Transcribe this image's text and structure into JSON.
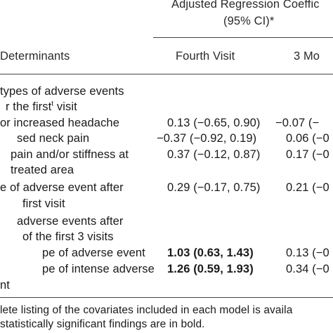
{
  "table": {
    "header": {
      "group_title_line1": "Adjusted Regression Coeffic",
      "group_title_line2": "(95% CI)*",
      "col_determinants": "Determinants",
      "col_fourth_visit": "Fourth Visit",
      "col_3mo": "3 Mo"
    },
    "rows": [
      {
        "label": "types of adverse events"
      },
      {
        "label": "r the first",
        "label_sup": "t",
        "label_tail": " visit"
      },
      {
        "label": "or increased headache",
        "fourth": "0.13 (−0.65, 0.90)",
        "three": "−0.07 (−"
      },
      {
        "label": "sed neck pain",
        "fourth": "−0.37 (−0.92, 0.19)",
        "three": "0.06 (−0"
      },
      {
        "label": "pain and/or stiffness at",
        "fourth": "0.37 (−0.12, 0.87)",
        "three": "0.17 (−0"
      },
      {
        "label": "treated area"
      },
      {
        "label": "e of adverse event after",
        "fourth": "0.29 (−0.17, 0.75)",
        "three": "0.21 (−0"
      },
      {
        "label": "first visit"
      },
      {
        "label": "adverse events after"
      },
      {
        "label": "of the first 3 visits"
      },
      {
        "label": "pe of adverse event",
        "fourth": "1.03 (0.63, 1.43)",
        "three": "0.13 (−0"
      },
      {
        "label": "pe of intense adverse",
        "fourth": "1.26 (0.59, 1.93)",
        "three": "0.34 (−0"
      },
      {
        "label": "nt"
      }
    ],
    "footnotes": {
      "line1": "lete listing of the covariates included in each model is availa",
      "line2": "statistically significant findings are in bold."
    }
  }
}
